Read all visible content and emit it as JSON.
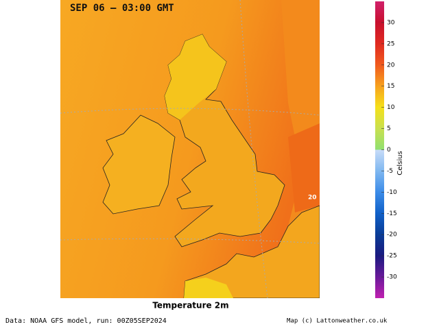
{
  "map": {
    "title": "SEP 06 — 03:00 GMT",
    "label": "20",
    "caption": "Temperature 2m"
  },
  "colorbar": {
    "label": "Celsius",
    "lim": [
      -35,
      35
    ],
    "ticks": [
      30,
      25,
      20,
      15,
      10,
      5,
      0,
      -5,
      -10,
      -15,
      -20,
      -25,
      -30
    ]
  },
  "footer": {
    "source": "Data: NOAA GFS model, run: 00Z05SEP2024",
    "credit": "Map (c) Lattonweather.co.uk"
  }
}
